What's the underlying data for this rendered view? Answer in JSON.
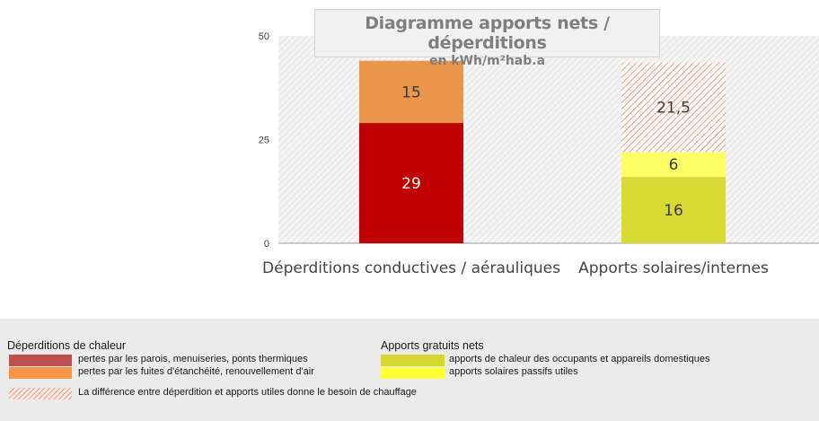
{
  "chart_data": {
    "type": "bar",
    "stacked": true,
    "title": "Diagramme apports nets / déperditions",
    "subtitle": "en kWh/m²hab.a",
    "categories": [
      "Déperditions conductives / aérauliques",
      "Apports solaires/internes"
    ],
    "series": [
      {
        "name": "pertes par les parois, menuiseries, ponts thermiques",
        "values": [
          29,
          null
        ],
        "labels": [
          "29",
          ""
        ],
        "color": "#c00000"
      },
      {
        "name": "pertes par les fuites d'étanchéité, renouvellement d'air",
        "values": [
          15,
          null
        ],
        "labels": [
          "15",
          ""
        ],
        "color": "#e9964a"
      },
      {
        "name": "apports de chaleur des occupants et appareils domestiques",
        "values": [
          null,
          16
        ],
        "labels": [
          "",
          "16"
        ],
        "color": "#d9d933"
      },
      {
        "name": "apports solaires passifs utiles",
        "values": [
          null,
          6
        ],
        "labels": [
          "",
          "6"
        ],
        "color": "#ffff66"
      },
      {
        "name": "La différence entre déperdition et apports utiles donne le besoin de chauffage",
        "values": [
          null,
          21.5
        ],
        "labels": [
          "",
          "21,5"
        ],
        "color": "#f08060",
        "pattern": "hatched"
      }
    ],
    "ylim": [
      0,
      50
    ],
    "yticks": [
      "0",
      "25",
      "50"
    ],
    "xlabel": "",
    "ylabel": "",
    "grid": false,
    "legend": "bottom"
  },
  "legend": {
    "left_heading": "Déperditions de chaleur",
    "right_heading": "Apports gratuits nets",
    "items": [
      {
        "label": "pertes par les parois, menuiseries, ponts thermiques",
        "color": "#c0504d"
      },
      {
        "label": "pertes par les fuites d'étanchéité, renouvellement d'air",
        "color": "#f79646"
      },
      {
        "label": "apports de chaleur des occupants et appareils domestiques",
        "color": "#d6d632"
      },
      {
        "label": "apports solaires passifs utiles",
        "color": "#ffff33"
      },
      {
        "label": "La différence entre déperdition et apports utiles donne le besoin de chauffage",
        "color": "#f08060"
      }
    ]
  }
}
